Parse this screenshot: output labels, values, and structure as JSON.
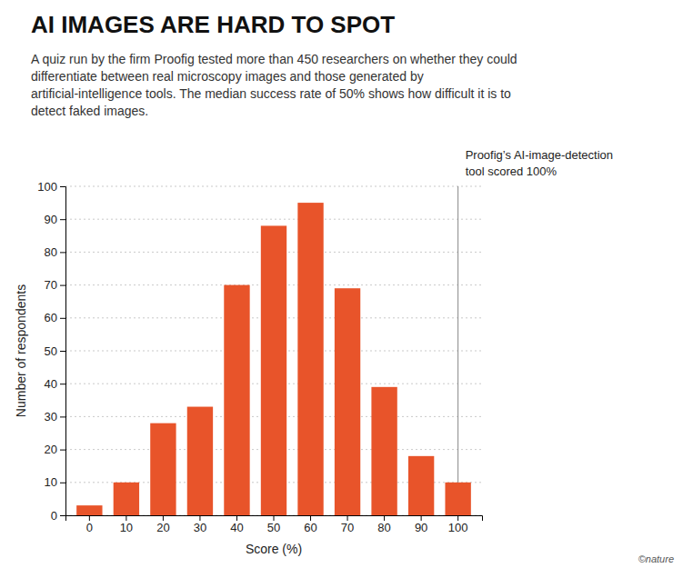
{
  "chart_data": {
    "type": "bar",
    "title": "AI IMAGES ARE HARD TO SPOT",
    "subtitle": "A quiz run by the firm Proofig tested more than 450 researchers on whether they could\ndifferentiate between real microscopy images and those generated by\nartificial-intelligence tools. The median success rate of 50% shows how difficult it is to\ndetect faked images.",
    "x_label": "Score (%)",
    "y_label": "Number of respondents",
    "categories": [
      0,
      10,
      20,
      30,
      40,
      50,
      60,
      70,
      80,
      90,
      100
    ],
    "values": [
      3,
      10,
      28,
      33,
      70,
      88,
      95,
      69,
      39,
      18,
      10
    ],
    "color": "#E8542A",
    "ylim": [
      0,
      100
    ],
    "yticks": [
      0,
      10,
      20,
      30,
      40,
      50,
      60,
      70,
      80,
      90,
      100
    ],
    "grid": true,
    "annotations": [
      {
        "text": "Proofig’s AI-image-detection\ntool scored 100%",
        "x": 100
      },
      {
        "text": "©nature"
      }
    ]
  }
}
